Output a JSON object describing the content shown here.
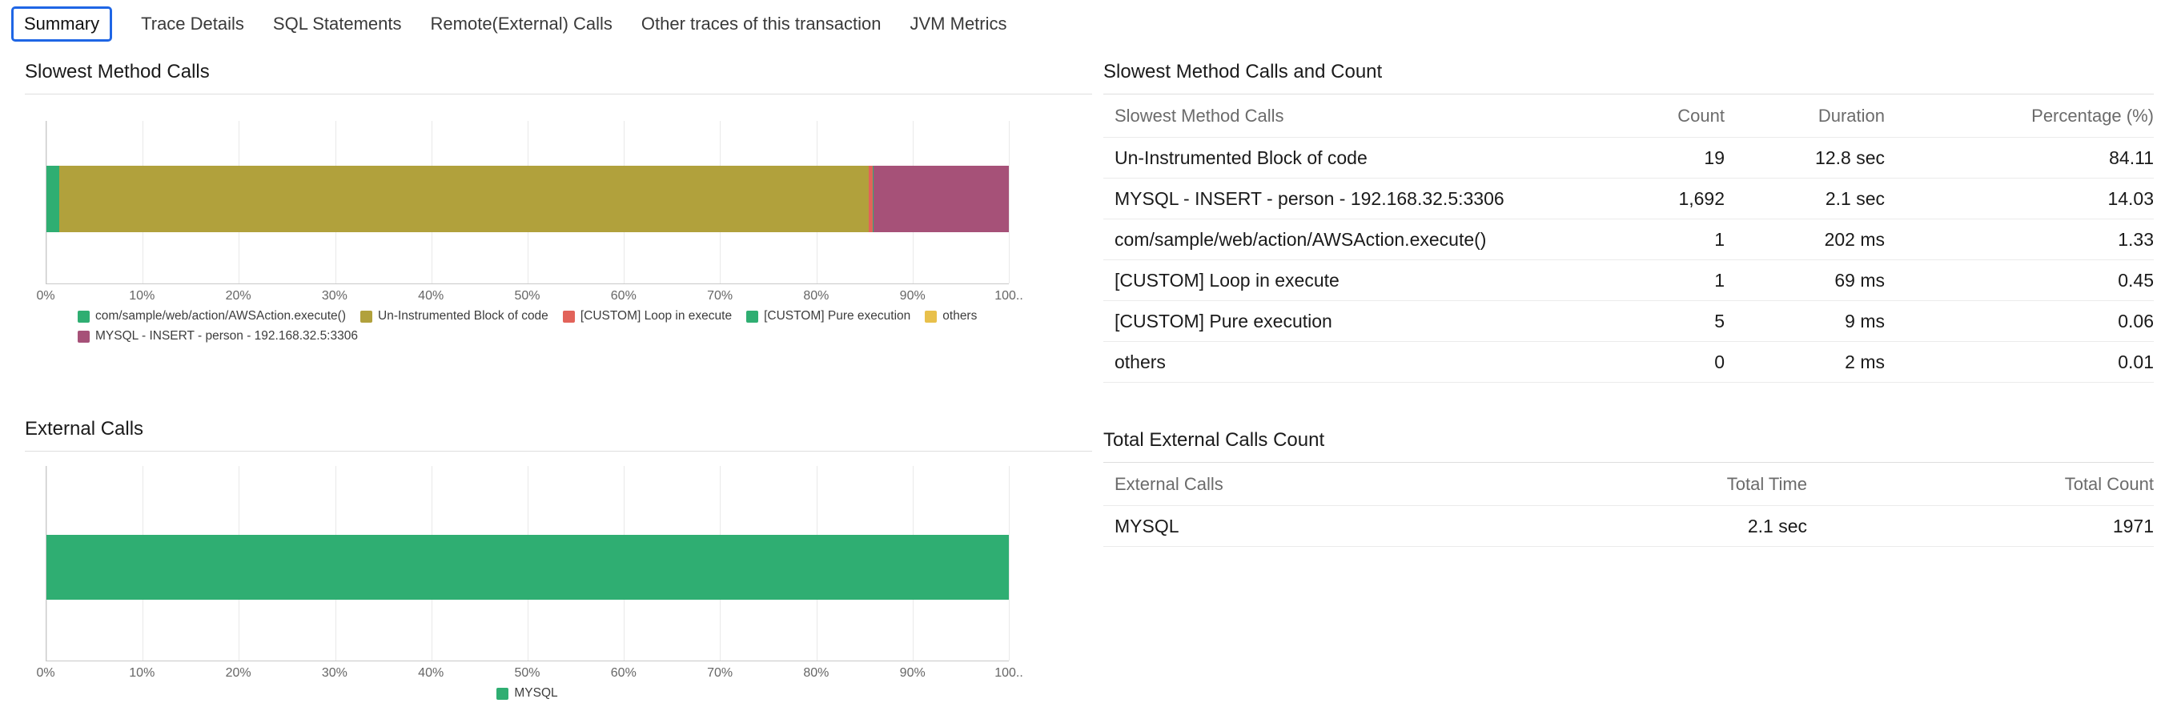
{
  "tabs": [
    {
      "label": "Summary",
      "selected": true
    },
    {
      "label": "Trace Details",
      "selected": false
    },
    {
      "label": "SQL Statements",
      "selected": false
    },
    {
      "label": "Remote(External) Calls",
      "selected": false
    },
    {
      "label": "Other traces of this transaction",
      "selected": false
    },
    {
      "label": "JVM Metrics",
      "selected": false
    }
  ],
  "colors": {
    "selected_tab_border": "#1f66e5",
    "green": "#2fae72",
    "olive": "#b1a13c",
    "red": "#e2635a",
    "yellow": "#e8c04b",
    "purple": "#a65178"
  },
  "sections": {
    "slowest_chart_title": "Slowest Method Calls",
    "external_chart_title": "External Calls",
    "slowest_table_title": "Slowest Method Calls and Count",
    "external_table_title": "Total External Calls Count"
  },
  "chart_data": [
    {
      "type": "bar",
      "title": "Slowest Method Calls",
      "orientation": "horizontal-stacked",
      "xlim": [
        0,
        100
      ],
      "x_ticks": [
        "0%",
        "10%",
        "20%",
        "30%",
        "40%",
        "50%",
        "60%",
        "70%",
        "80%",
        "90%",
        "100.."
      ],
      "grid": true,
      "legend_position": "bottom",
      "series": [
        {
          "name": "com/sample/web/action/AWSAction.execute()",
          "value": 1.33,
          "color": "#2fae72"
        },
        {
          "name": "Un-Instrumented Block of code",
          "value": 84.11,
          "color": "#b1a13c"
        },
        {
          "name": "[CUSTOM] Loop in execute",
          "value": 0.45,
          "color": "#e2635a"
        },
        {
          "name": "[CUSTOM] Pure execution",
          "value": 0.06,
          "color": "#2fae72"
        },
        {
          "name": "others",
          "value": 0.01,
          "color": "#e8c04b"
        },
        {
          "name": "MYSQL - INSERT - person - 192.168.32.5:3306",
          "value": 14.03,
          "color": "#a65178"
        }
      ]
    },
    {
      "type": "bar",
      "title": "External Calls",
      "orientation": "horizontal-stacked",
      "xlim": [
        0,
        100
      ],
      "x_ticks": [
        "0%",
        "10%",
        "20%",
        "30%",
        "40%",
        "50%",
        "60%",
        "70%",
        "80%",
        "90%",
        "100.."
      ],
      "grid": true,
      "legend_position": "bottom-center",
      "series": [
        {
          "name": "MYSQL",
          "value": 100,
          "color": "#2fae72"
        }
      ]
    }
  ],
  "tables": {
    "slowest": {
      "title": "Slowest Method Calls and Count",
      "columns": [
        "Slowest Method Calls",
        "Count",
        "Duration",
        "Percentage (%)"
      ],
      "rows": [
        {
          "name": "Un-Instrumented Block of code",
          "count": "19",
          "duration": "12.8 sec",
          "percentage": "84.11"
        },
        {
          "name": "MYSQL - INSERT - person - 192.168.32.5:3306",
          "count": "1,692",
          "duration": "2.1 sec",
          "percentage": "14.03"
        },
        {
          "name": "com/sample/web/action/AWSAction.execute()",
          "count": "1",
          "duration": "202 ms",
          "percentage": "1.33"
        },
        {
          "name": "[CUSTOM] Loop in execute",
          "count": "1",
          "duration": "69 ms",
          "percentage": "0.45"
        },
        {
          "name": "[CUSTOM] Pure execution",
          "count": "5",
          "duration": "9 ms",
          "percentage": "0.06"
        },
        {
          "name": "others",
          "count": "0",
          "duration": "2 ms",
          "percentage": "0.01"
        }
      ]
    },
    "external": {
      "title": "Total External Calls Count",
      "columns": [
        "External Calls",
        "Total Time",
        "Total Count"
      ],
      "rows": [
        {
          "name": "MYSQL",
          "total_time": "2.1 sec",
          "total_count": "1971"
        }
      ]
    }
  }
}
